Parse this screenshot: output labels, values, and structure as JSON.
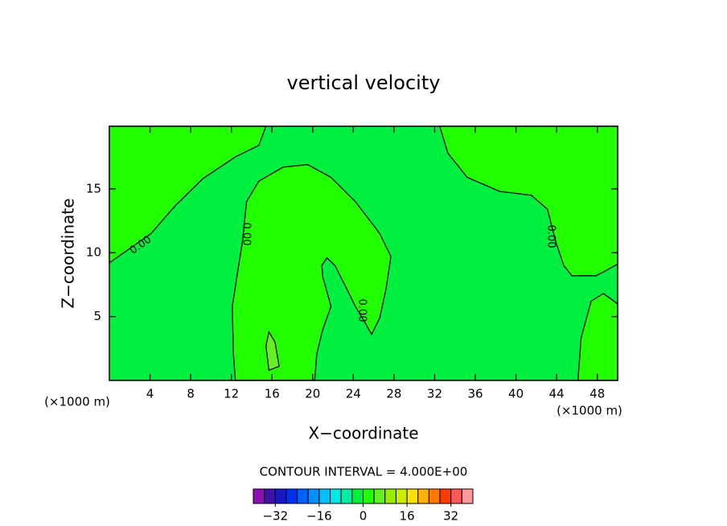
{
  "chart_data": {
    "type": "contour",
    "title": "vertical velocity",
    "xlabel": "X−coordinate",
    "ylabel": "Z−coordinate",
    "x_unit": "(×1000 m)",
    "xlim": [
      0,
      50
    ],
    "ylim": [
      0,
      19.9
    ],
    "xticks": [
      4,
      8,
      12,
      16,
      20,
      24,
      28,
      32,
      36,
      40,
      44,
      48
    ],
    "yticks": [
      5,
      10,
      15
    ],
    "interval_text": "CONTOUR INTERVAL = 4.000E+00",
    "contour_labels": [
      "0.00",
      "0.00",
      "0.00",
      "0.00"
    ],
    "background_level": -4,
    "regions": [
      {
        "level": 0,
        "x": [
          0,
          0,
          4.1,
          6.5,
          9.2,
          12.4,
          14.7,
          15.4,
          0
        ],
        "y": [
          9.2,
          9.2,
          11.5,
          13.7,
          15.8,
          17.5,
          18.4,
          19.9,
          19.9
        ]
      },
      {
        "level": 0,
        "x": [
          12.4,
          12.2,
          12.1,
          12.6,
          13.1,
          13.5,
          14.7,
          17.1,
          19.5,
          21.8,
          24.2,
          26.6,
          27.7,
          27.2,
          26.6,
          25.8,
          25.1,
          24.2,
          23.4,
          22.2,
          21.4,
          20.9,
          21.0,
          21.8,
          21.0,
          20.4,
          20.2
        ],
        "y": [
          0,
          2.1,
          5.8,
          8.4,
          10.9,
          14.0,
          15.6,
          16.7,
          16.9,
          15.9,
          14.0,
          11.5,
          9.7,
          7.1,
          4.9,
          3.6,
          4.6,
          5.8,
          7.1,
          9.0,
          9.6,
          9.0,
          8.1,
          5.8,
          4.0,
          2.1,
          0
        ]
      },
      {
        "level": 0,
        "x": [
          32.5,
          33.3,
          35.2,
          38.4,
          41.5,
          43.1,
          43.9,
          44.7,
          45.5,
          47.9,
          50,
          50
        ],
        "y": [
          19.9,
          17.8,
          15.9,
          14.8,
          14.5,
          13.4,
          10.9,
          9.0,
          8.2,
          8.2,
          9.1,
          19.9
        ]
      },
      {
        "level": 0,
        "x": [
          46.1,
          46.4,
          47.4,
          48.6,
          50,
          50
        ],
        "y": [
          0,
          3.3,
          6.2,
          6.8,
          6.0,
          0
        ]
      },
      {
        "level": 4,
        "x": [
          15.7,
          15.4,
          15.7,
          16.3,
          16.7
        ],
        "y": [
          0.8,
          2.7,
          3.8,
          3.0,
          1.1
        ]
      }
    ],
    "colorbar": {
      "levels": [
        -40,
        -36,
        -32,
        -28,
        -24,
        -20,
        -16,
        -12,
        -8,
        -4,
        0,
        4,
        8,
        12,
        16,
        20,
        24,
        28,
        32,
        36,
        40
      ],
      "colors": [
        "#8a10b0",
        "#4010a8",
        "#1818c8",
        "#0030f0",
        "#0060ff",
        "#0090ff",
        "#00c0ff",
        "#00e8e8",
        "#00f0a8",
        "#00f040",
        "#22ff00",
        "#66ee22",
        "#99ee00",
        "#ccee00",
        "#ffe000",
        "#ffb000",
        "#ff7800",
        "#ff3c00",
        "#ff5858",
        "#ff9898"
      ],
      "ticks": [
        {
          "value": -32,
          "label": "−32"
        },
        {
          "value": -16,
          "label": "−16"
        },
        0,
        16,
        32
      ]
    }
  }
}
